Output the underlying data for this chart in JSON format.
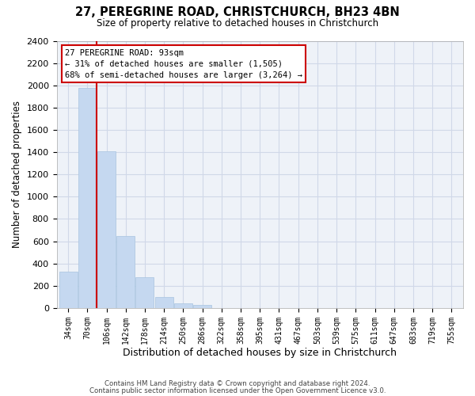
{
  "title1": "27, PEREGRINE ROAD, CHRISTCHURCH, BH23 4BN",
  "title2": "Size of property relative to detached houses in Christchurch",
  "xlabel": "Distribution of detached houses by size in Christchurch",
  "ylabel": "Number of detached properties",
  "bar_labels": [
    "34sqm",
    "70sqm",
    "106sqm",
    "142sqm",
    "178sqm",
    "214sqm",
    "250sqm",
    "286sqm",
    "322sqm",
    "358sqm",
    "395sqm",
    "431sqm",
    "467sqm",
    "503sqm",
    "539sqm",
    "575sqm",
    "611sqm",
    "647sqm",
    "683sqm",
    "719sqm",
    "755sqm"
  ],
  "bar_values": [
    325,
    1975,
    1410,
    650,
    280,
    100,
    45,
    28,
    0,
    0,
    0,
    0,
    0,
    0,
    0,
    0,
    0,
    0,
    0,
    0,
    0
  ],
  "bar_color": "#c5d8f0",
  "bar_edge_color": "#a8c4e0",
  "annotation_title": "27 PEREGRINE ROAD: 93sqm",
  "annotation_line1": "← 31% of detached houses are smaller (1,505)",
  "annotation_line2": "68% of semi-detached houses are larger (3,264) →",
  "annotation_box_color": "#ffffff",
  "annotation_box_edge": "#cc0000",
  "vline_color": "#cc0000",
  "ylim": [
    0,
    2400
  ],
  "yticks": [
    0,
    200,
    400,
    600,
    800,
    1000,
    1200,
    1400,
    1600,
    1800,
    2000,
    2200,
    2400
  ],
  "grid_color": "#d0d8e8",
  "bg_color": "#ffffff",
  "plot_bg_color": "#eef2f8",
  "footer1": "Contains HM Land Registry data © Crown copyright and database right 2024.",
  "footer2": "Contains public sector information licensed under the Open Government Licence v3.0."
}
